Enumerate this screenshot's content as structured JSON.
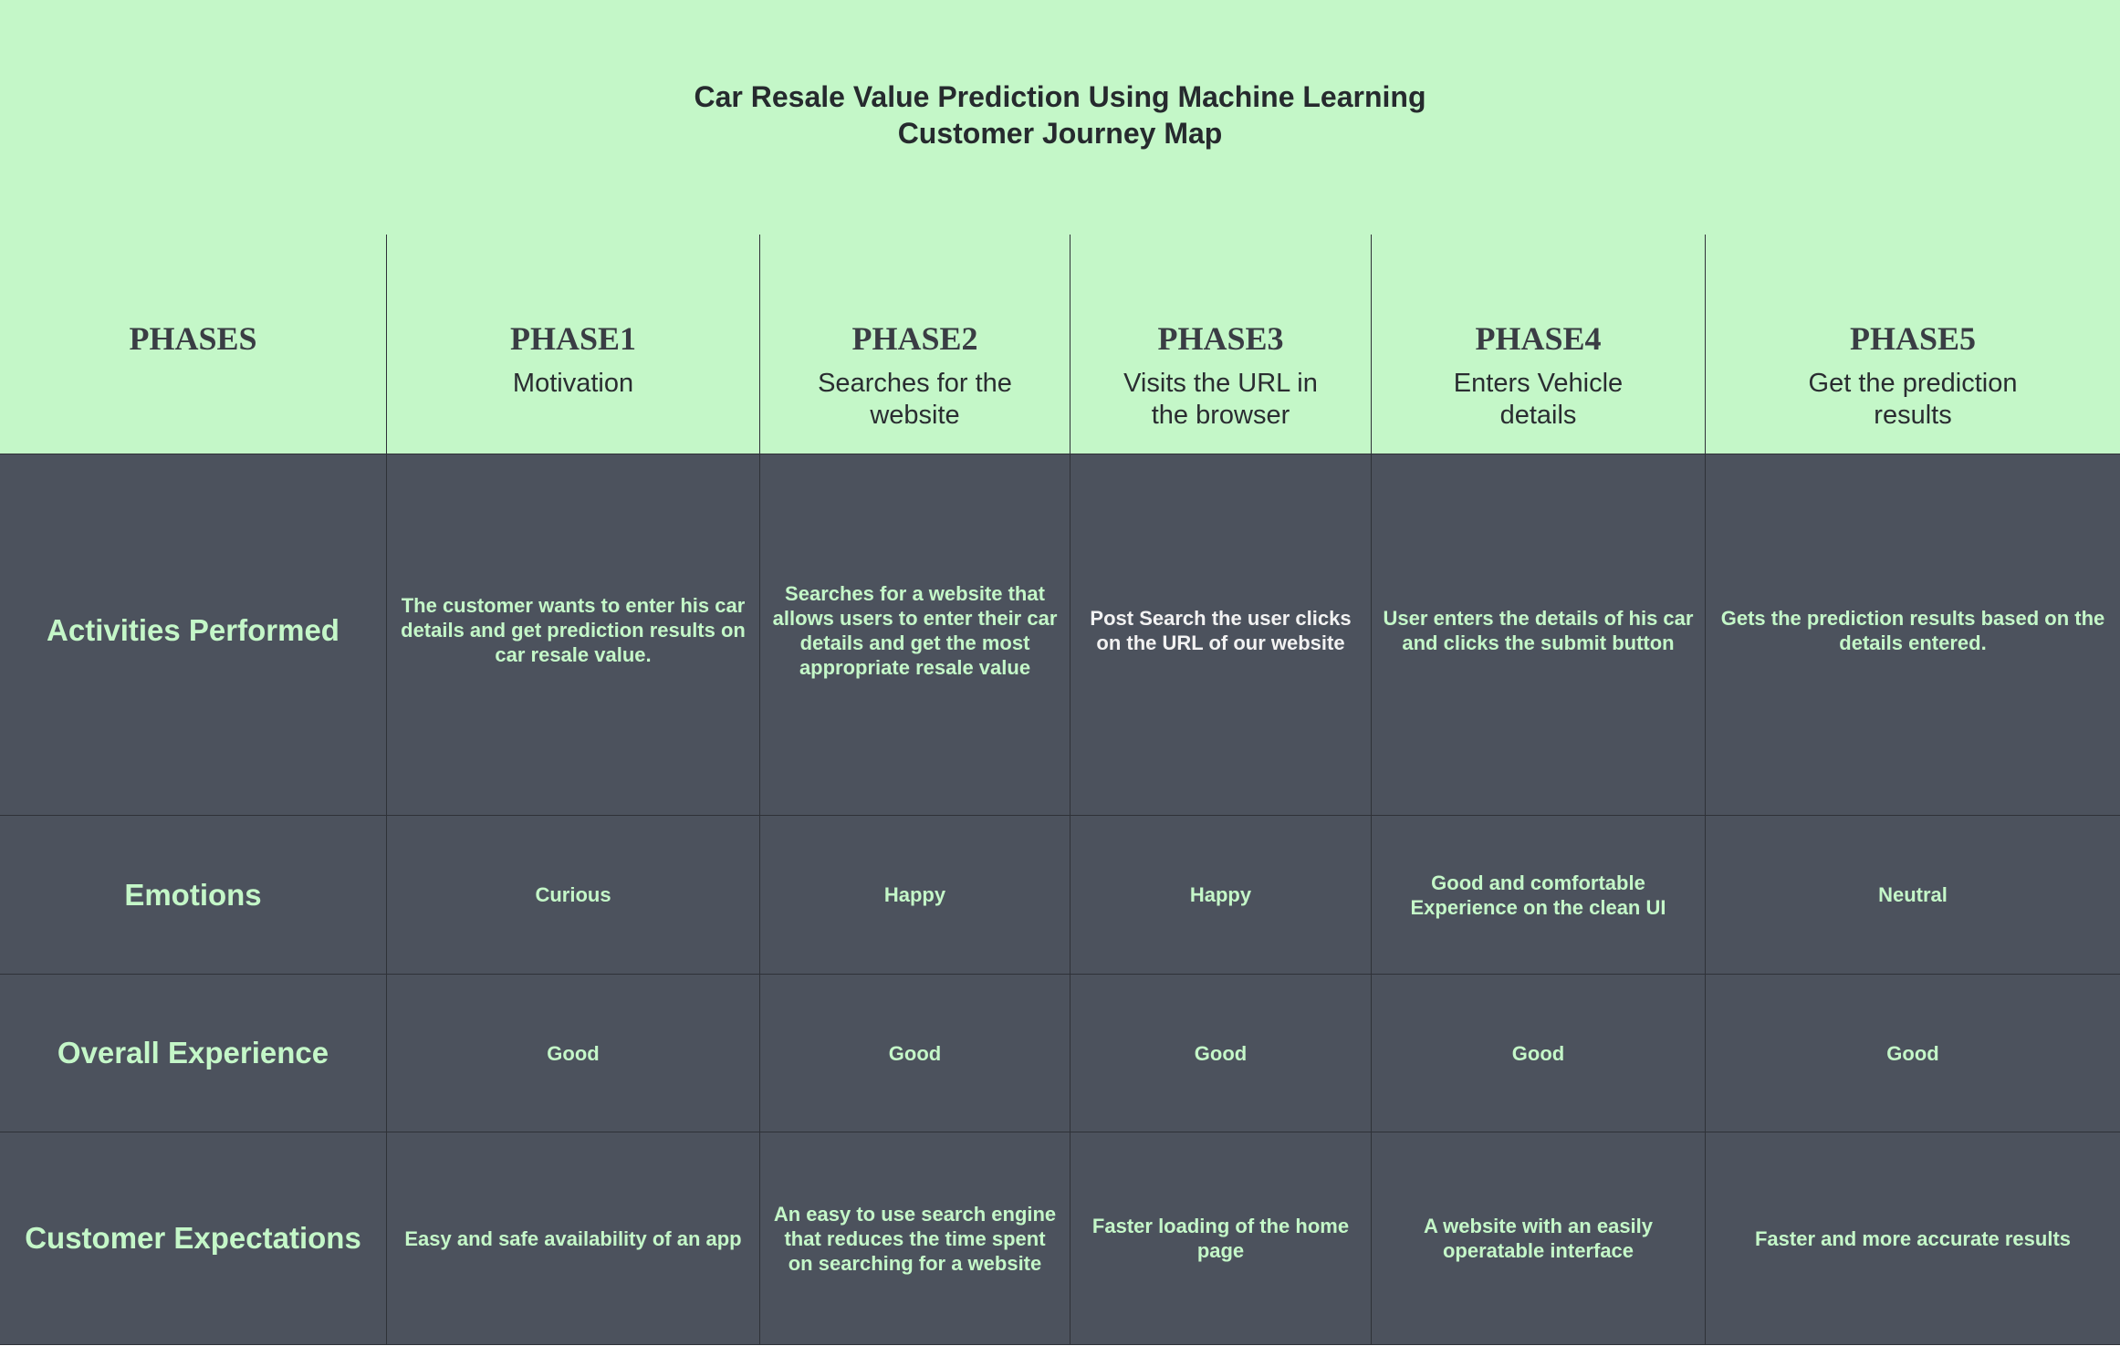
{
  "title": {
    "line1": "Car Resale Value Prediction Using Machine Learning",
    "line2": "Customer Journey Map"
  },
  "header": {
    "corner": "PHASES",
    "phases": [
      {
        "name": "PHASE1",
        "desc": "Motivation"
      },
      {
        "name": "PHASE2",
        "desc": "Searches for the website"
      },
      {
        "name": "PHASE3",
        "desc": "Visits the URL in the browser"
      },
      {
        "name": "PHASE4",
        "desc": "Enters Vehicle details"
      },
      {
        "name": "PHASE5",
        "desc": "Get the prediction results"
      }
    ]
  },
  "rows": {
    "activities": {
      "label": "Activities Performed",
      "values": [
        "The customer wants to enter his car details and get prediction results on car resale value.",
        "Searches for a website that allows users to enter their car details and get the most appropriate resale value",
        "Post Search the user clicks on the URL of our website",
        "User enters the details of his car and clicks the submit button",
        "Gets the prediction results based on the details entered."
      ]
    },
    "emotions": {
      "label": "Emotions",
      "values": [
        "Curious",
        "Happy",
        "Happy",
        "Good and comfortable Experience on the clean UI",
        "Neutral"
      ]
    },
    "experience": {
      "label": "Overall Experience",
      "values": [
        "Good",
        "Good",
        "Good",
        "Good",
        "Good"
      ]
    },
    "expectations": {
      "label": "Customer Expectations",
      "values": [
        "Easy and safe availability of an app",
        "An easy to use search engine that reduces the time spent on searching for a website",
        "Faster loading of the home page",
        "A website with an easily operatable interface",
        "Faster and more accurate results"
      ]
    }
  },
  "colors": {
    "header_bg": "#c4f7c8",
    "body_bg": "#4c525d",
    "body_text": "#c4f7c8",
    "header_text": "#3a3d44"
  }
}
